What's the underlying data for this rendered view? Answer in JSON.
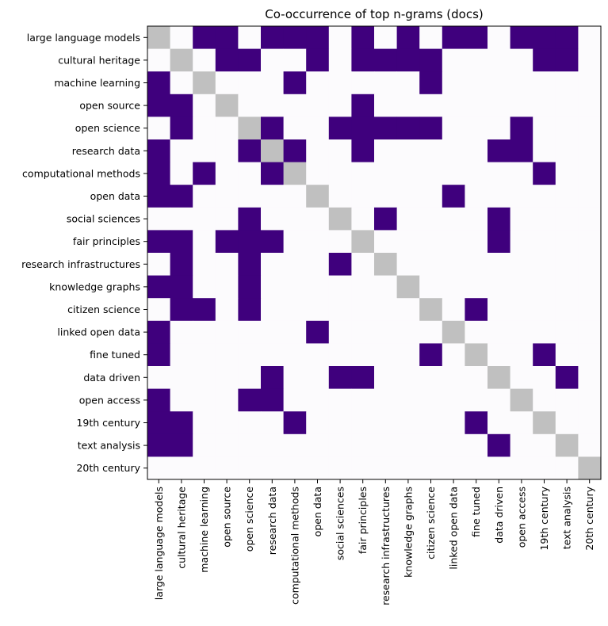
{
  "chart_data": {
    "type": "heatmap",
    "title": "Co-occurrence of top n-grams (docs)",
    "xlabel": "",
    "ylabel": "",
    "labels": [
      "large language models",
      "cultural heritage",
      "machine learning",
      "open source",
      "open science",
      "research data",
      "computational methods",
      "open data",
      "social sciences",
      "fair principles",
      "research infrastructures",
      "knowledge graphs",
      "citizen science",
      "linked open data",
      "fine tuned",
      "data driven",
      "open access",
      "19th century",
      "text analysis",
      "20th century"
    ],
    "matrix": [
      [
        -1,
        0,
        1,
        1,
        0,
        1,
        1,
        1,
        0,
        1,
        0,
        1,
        0,
        1,
        1,
        0,
        1,
        1,
        1,
        0
      ],
      [
        0,
        -1,
        0,
        1,
        1,
        0,
        0,
        1,
        0,
        1,
        1,
        1,
        1,
        0,
        0,
        0,
        0,
        1,
        1,
        0
      ],
      [
        1,
        0,
        -1,
        0,
        0,
        0,
        1,
        0,
        0,
        0,
        0,
        0,
        1,
        0,
        0,
        0,
        0,
        0,
        0,
        0
      ],
      [
        1,
        1,
        0,
        -1,
        0,
        0,
        0,
        0,
        0,
        1,
        0,
        0,
        0,
        0,
        0,
        0,
        0,
        0,
        0,
        0
      ],
      [
        0,
        1,
        0,
        0,
        -1,
        1,
        0,
        0,
        1,
        1,
        1,
        1,
        1,
        0,
        0,
        0,
        1,
        0,
        0,
        0
      ],
      [
        1,
        0,
        0,
        0,
        1,
        -1,
        1,
        0,
        0,
        1,
        0,
        0,
        0,
        0,
        0,
        1,
        1,
        0,
        0,
        0
      ],
      [
        1,
        0,
        1,
        0,
        0,
        1,
        -1,
        0,
        0,
        0,
        0,
        0,
        0,
        0,
        0,
        0,
        0,
        1,
        0,
        0
      ],
      [
        1,
        1,
        0,
        0,
        0,
        0,
        0,
        -1,
        0,
        0,
        0,
        0,
        0,
        1,
        0,
        0,
        0,
        0,
        0,
        0
      ],
      [
        0,
        0,
        0,
        0,
        1,
        0,
        0,
        0,
        -1,
        0,
        1,
        0,
        0,
        0,
        0,
        1,
        0,
        0,
        0,
        0
      ],
      [
        1,
        1,
        0,
        1,
        1,
        1,
        0,
        0,
        0,
        -1,
        0,
        0,
        0,
        0,
        0,
        1,
        0,
        0,
        0,
        0
      ],
      [
        0,
        1,
        0,
        0,
        1,
        0,
        0,
        0,
        1,
        0,
        -1,
        0,
        0,
        0,
        0,
        0,
        0,
        0,
        0,
        0
      ],
      [
        1,
        1,
        0,
        0,
        1,
        0,
        0,
        0,
        0,
        0,
        0,
        -1,
        0,
        0,
        0,
        0,
        0,
        0,
        0,
        0
      ],
      [
        0,
        1,
        1,
        0,
        1,
        0,
        0,
        0,
        0,
        0,
        0,
        0,
        -1,
        0,
        1,
        0,
        0,
        0,
        0,
        0
      ],
      [
        1,
        0,
        0,
        0,
        0,
        0,
        0,
        1,
        0,
        0,
        0,
        0,
        0,
        -1,
        0,
        0,
        0,
        0,
        0,
        0
      ],
      [
        1,
        0,
        0,
        0,
        0,
        0,
        0,
        0,
        0,
        0,
        0,
        0,
        1,
        0,
        -1,
        0,
        0,
        1,
        0,
        0
      ],
      [
        0,
        0,
        0,
        0,
        0,
        1,
        0,
        0,
        1,
        1,
        0,
        0,
        0,
        0,
        0,
        -1,
        0,
        0,
        1,
        0
      ],
      [
        1,
        0,
        0,
        0,
        1,
        1,
        0,
        0,
        0,
        0,
        0,
        0,
        0,
        0,
        0,
        0,
        -1,
        0,
        0,
        0
      ],
      [
        1,
        1,
        0,
        0,
        0,
        0,
        1,
        0,
        0,
        0,
        0,
        0,
        0,
        0,
        1,
        0,
        0,
        -1,
        0,
        0
      ],
      [
        1,
        1,
        0,
        0,
        0,
        0,
        0,
        0,
        0,
        0,
        0,
        0,
        0,
        0,
        0,
        1,
        0,
        0,
        -1,
        0
      ],
      [
        0,
        0,
        0,
        0,
        0,
        0,
        0,
        0,
        0,
        0,
        0,
        0,
        0,
        0,
        0,
        0,
        0,
        0,
        0,
        -1
      ]
    ],
    "colors": {
      "present": "#3f007d",
      "absent": "#fcfbfd",
      "diagonal": "#c0c0c0"
    },
    "grid": false,
    "legend": "none"
  }
}
